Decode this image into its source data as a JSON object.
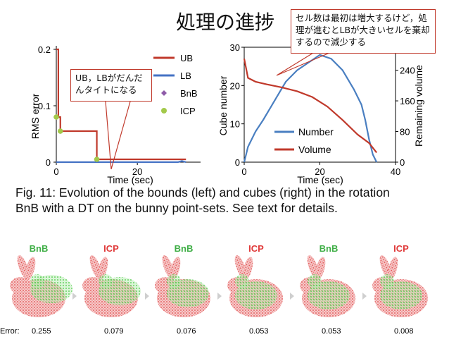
{
  "slide": {
    "title": "処理の進捗",
    "callout_right": "セル数は最初は増大するけど，処理が進むとLBが大きいセルを棄却するので減少する",
    "callout_left": "UB，LBがだんだんタイトになる"
  },
  "colors": {
    "ub": "#c0392b",
    "lb": "#4472c4",
    "bnb": "#8e5ba8",
    "icp": "#a3c94a",
    "number": "#4a7fc1",
    "volume": "#c0392b",
    "callout_border": "#c0392b"
  },
  "chart_data": [
    {
      "type": "line",
      "title": "",
      "xlabel": "Time (sec)",
      "ylabel": "RMS error",
      "xlim": [
        0,
        33
      ],
      "ylim": [
        0,
        0.2
      ],
      "x_ticks": [
        0,
        20
      ],
      "y_ticks": [
        0,
        0.1,
        0.2
      ],
      "legend_position": "top-right",
      "series": [
        {
          "name": "UB",
          "kind": "line",
          "points": [
            [
              0,
              0.2
            ],
            [
              0.5,
              0.2
            ],
            [
              0.5,
              0.08
            ],
            [
              1,
              0.08
            ],
            [
              1,
              0.055
            ],
            [
              10,
              0.055
            ],
            [
              10,
              0.005
            ],
            [
              32,
              0.005
            ]
          ]
        },
        {
          "name": "LB",
          "kind": "line",
          "points": [
            [
              0,
              0
            ],
            [
              30,
              0
            ],
            [
              31,
              0.002
            ],
            [
              32,
              0
            ]
          ]
        },
        {
          "name": "BnB",
          "kind": "marker",
          "points": [
            [
              0,
              0.08
            ],
            [
              1,
              0.055
            ],
            [
              10,
              0.005
            ]
          ]
        },
        {
          "name": "ICP",
          "kind": "marker",
          "points": [
            [
              0,
              0.08
            ],
            [
              1,
              0.055
            ],
            [
              10,
              0.005
            ]
          ]
        }
      ]
    },
    {
      "type": "line",
      "title": "",
      "xlabel": "Time (sec)",
      "ylabel": "Cube number",
      "ylabel_right": "Remaining volume",
      "xlim": [
        0,
        40
      ],
      "ylim": [
        0,
        30
      ],
      "ylim_right": [
        0,
        300
      ],
      "x_ticks": [
        0,
        20,
        40
      ],
      "y_ticks": [
        0,
        10,
        20,
        30
      ],
      "y_ticks_right": [
        0,
        80,
        160,
        240
      ],
      "legend_position": "bottom-center",
      "series": [
        {
          "name": "Number",
          "axis": "left",
          "points": [
            [
              0,
              0
            ],
            [
              1,
              4
            ],
            [
              3,
              8
            ],
            [
              5,
              11
            ],
            [
              8,
              16
            ],
            [
              11,
              21
            ],
            [
              14,
              24
            ],
            [
              17,
              26
            ],
            [
              20,
              28
            ],
            [
              23,
              27
            ],
            [
              26,
              24
            ],
            [
              29,
              19
            ],
            [
              31,
              15
            ],
            [
              32,
              11
            ],
            [
              33,
              6
            ],
            [
              34,
              2
            ],
            [
              35,
              0
            ]
          ]
        },
        {
          "name": "Volume",
          "axis": "right",
          "points": [
            [
              0,
              270
            ],
            [
              1,
              220
            ],
            [
              3,
              210
            ],
            [
              6,
              203
            ],
            [
              10,
              195
            ],
            [
              14,
              185
            ],
            [
              18,
              170
            ],
            [
              22,
              145
            ],
            [
              26,
              110
            ],
            [
              30,
              72
            ],
            [
              33,
              50
            ],
            [
              35,
              25
            ]
          ]
        }
      ]
    }
  ],
  "caption": {
    "line1": "Fig. 11: Evolution of the bounds (left) and cubes (right) in the rotation",
    "line2": "BnB with a DT on the bunny point-sets. See text for details."
  },
  "bunnies": {
    "error_label": "Error:",
    "items": [
      {
        "label": "BnB",
        "error": "0.255"
      },
      {
        "label": "ICP",
        "error": "0.079"
      },
      {
        "label": "BnB",
        "error": "0.076"
      },
      {
        "label": "ICP",
        "error": "0.053"
      },
      {
        "label": "BnB",
        "error": "0.053"
      },
      {
        "label": "ICP",
        "error": "0.008"
      }
    ]
  }
}
